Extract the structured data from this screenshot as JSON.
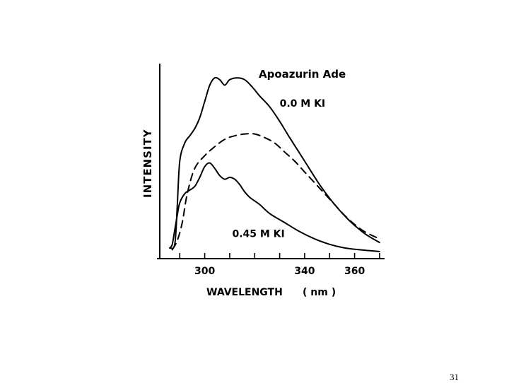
{
  "page_number": "31",
  "chart_data": {
    "type": "line",
    "title": "Apoazurin Ade",
    "xlabel": "WAVELENGTH",
    "xunit": "( nm )",
    "ylabel": "INTENSITY",
    "xlim": [
      282,
      372
    ],
    "ylim": [
      0,
      100
    ],
    "x_ticks": [
      290,
      300,
      310,
      320,
      330,
      340,
      350,
      360,
      370
    ],
    "x_tick_labels": [
      {
        "x": 300,
        "label": "300"
      },
      {
        "x": 340,
        "label": "340"
      },
      {
        "x": 360,
        "label": "360"
      }
    ],
    "grid": false,
    "legend": "none",
    "series": [
      {
        "name": "0.0 M KI",
        "style": "solid",
        "x": [
          286,
          288,
          289,
          290,
          292,
          294,
          296,
          298,
          300,
          302,
          304,
          306,
          308,
          310,
          313,
          316,
          319,
          322,
          326,
          330,
          334,
          340,
          346,
          352,
          358,
          364,
          370
        ],
        "y": [
          2,
          4,
          25,
          50,
          60,
          64,
          68,
          74,
          83,
          92,
          96,
          95,
          92,
          95,
          96,
          95,
          91,
          86,
          80,
          72,
          63,
          50,
          37,
          26,
          17,
          10,
          5
        ]
      },
      {
        "name": "",
        "style": "dashed",
        "x": [
          287,
          289,
          291,
          293,
          296,
          300,
          304,
          308,
          312,
          316,
          320,
          324,
          328,
          332,
          336,
          340,
          344,
          348,
          352,
          356,
          360,
          364,
          370
        ],
        "y": [
          1,
          6,
          16,
          32,
          46,
          53,
          58,
          62,
          64,
          65,
          65,
          63,
          60,
          55,
          50,
          44,
          38,
          32,
          26,
          20,
          15,
          11,
          7
        ]
      },
      {
        "name": "0.45 M KI",
        "style": "solid",
        "x": [
          286,
          287,
          288,
          289,
          290,
          292,
          294,
          296,
          298,
          300,
          302,
          304,
          306,
          308,
          310,
          312,
          314,
          316,
          318,
          322,
          326,
          332,
          338,
          344,
          350,
          356,
          362,
          370
        ],
        "y": [
          2,
          4,
          12,
          20,
          27,
          32,
          34,
          36,
          41,
          47,
          49,
          46,
          42,
          40,
          41,
          40,
          37,
          33,
          30,
          26,
          21,
          16,
          11,
          7,
          4,
          2,
          1,
          0
        ]
      }
    ],
    "annotations": [
      {
        "text": "0.0 M KI",
        "x": 330,
        "y": 80
      },
      {
        "text": "0.45 M KI",
        "x": 311,
        "y": 8
      }
    ]
  }
}
